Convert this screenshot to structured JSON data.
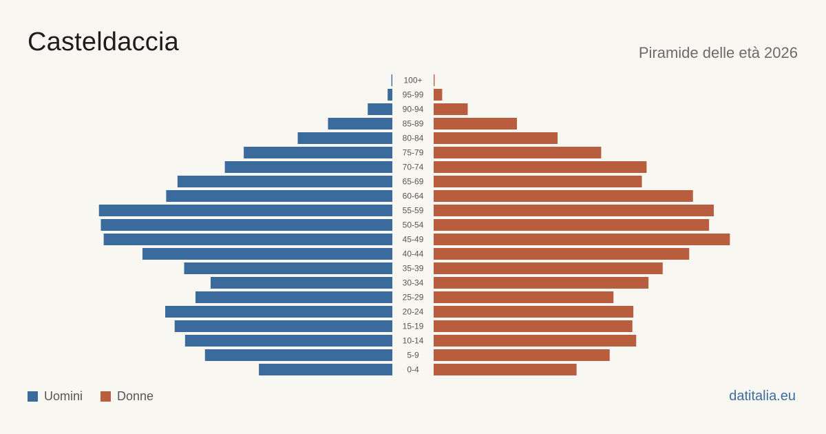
{
  "header": {
    "title": "Casteldaccia",
    "subtitle": "Piramide delle età 2026"
  },
  "legend": {
    "men_label": "Uomini",
    "women_label": "Donne"
  },
  "footer": {
    "source": "datitalia.eu"
  },
  "colors": {
    "men": "#3a6b9c",
    "women": "#b85d3e"
  },
  "chart_data": {
    "type": "bar",
    "orientation": "horizontal-pyramid",
    "categories": [
      "100+",
      "95-99",
      "90-94",
      "85-89",
      "80-84",
      "75-79",
      "70-74",
      "65-69",
      "60-64",
      "55-59",
      "50-54",
      "45-49",
      "40-44",
      "35-39",
      "30-34",
      "25-29",
      "20-24",
      "15-19",
      "10-14",
      "5-9",
      "0-4"
    ],
    "series": [
      {
        "name": "Uomini",
        "values": [
          1,
          5,
          26,
          68,
          100,
          157,
          177,
          227,
          239,
          310,
          308,
          305,
          264,
          220,
          192,
          208,
          240,
          230,
          219,
          198,
          141
        ]
      },
      {
        "name": "Donne",
        "values": [
          1,
          9,
          36,
          88,
          131,
          177,
          225,
          220,
          274,
          296,
          291,
          313,
          270,
          242,
          227,
          190,
          211,
          210,
          214,
          186,
          151
        ]
      }
    ],
    "legend_position": "bottom-left",
    "grid": false
  }
}
